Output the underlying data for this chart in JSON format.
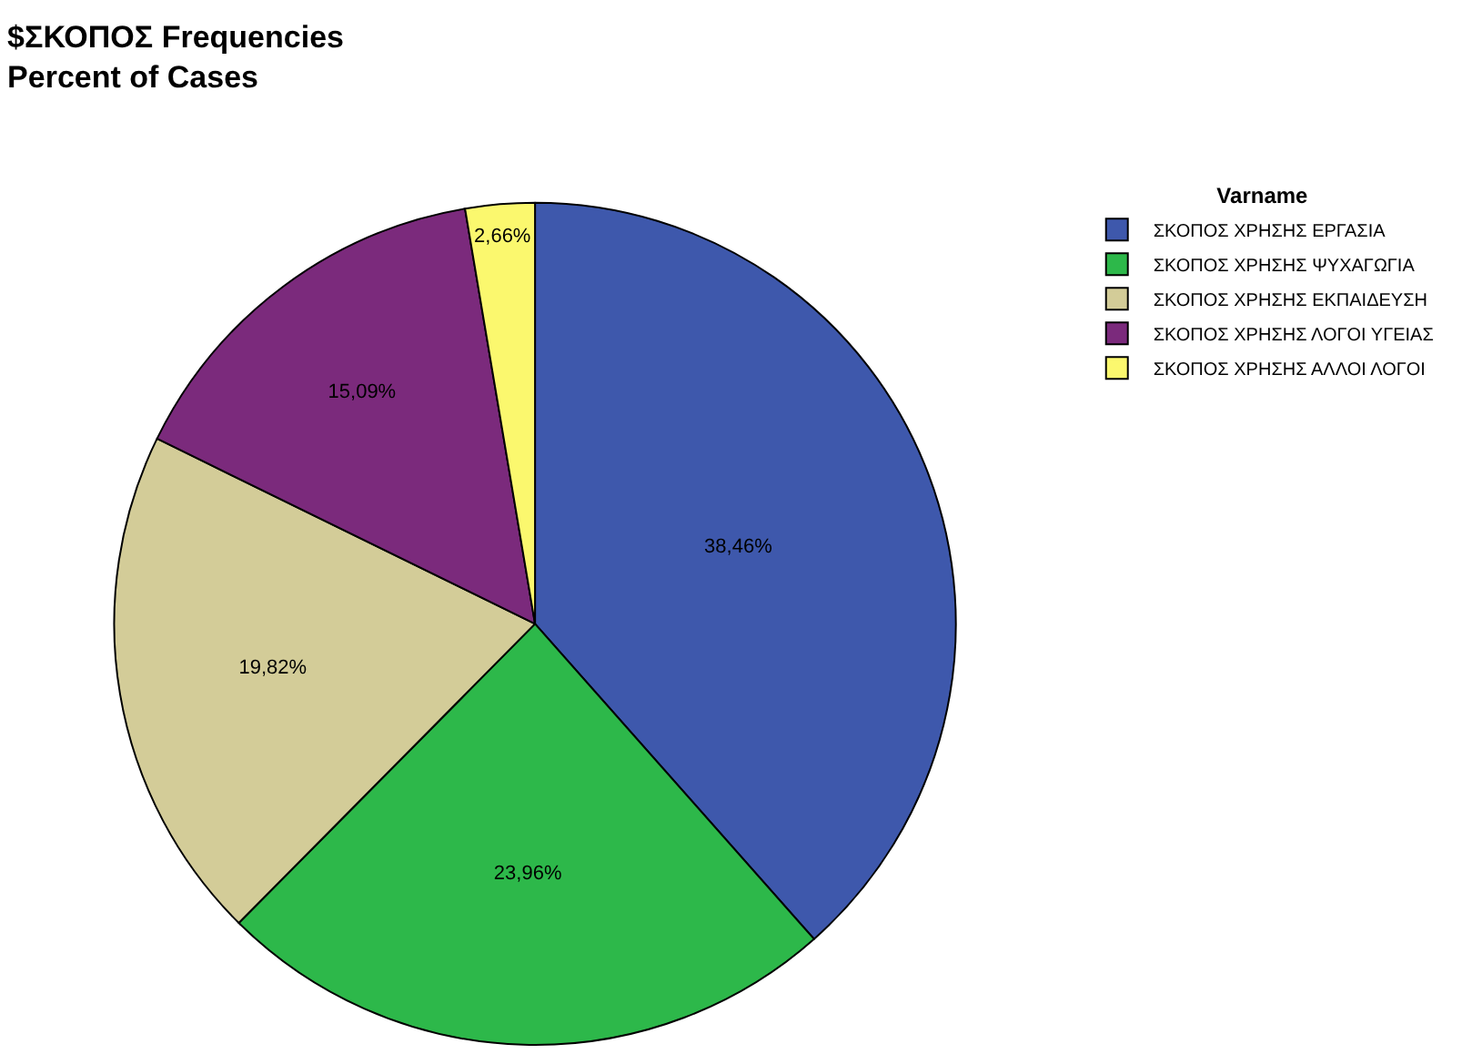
{
  "chart_data": {
    "type": "pie",
    "title": "$ΣΚΟΠΟΣ Frequencies\nPercent of Cases",
    "legend_title": "Varname",
    "legend": "top right",
    "categories": [
      "ΣΚΟΠΟΣ ΧΡΗΣΗΣ ΕΡΓΑΣΙΑ",
      "ΣΚΟΠΟΣ ΧΡΗΣΗΣ ΨΥΧΑΓΩΓΙΑ",
      "ΣΚΟΠΟΣ ΧΡΗΣΗΣ ΕΚΠΑΙΔΕΥΣΗ",
      "ΣΚΟΠΟΣ ΧΡΗΣΗΣ ΛΟΓΟΙ ΥΓΕΙΑΣ",
      "ΣΚΟΠΟΣ ΧΡΗΣΗΣ ΑΛΛΟΙ ΛΟΓΟΙ"
    ],
    "values": [
      38.46,
      23.96,
      19.82,
      15.09,
      2.66
    ],
    "colors": [
      "#3e58ac",
      "#2db84a",
      "#d3cc98",
      "#7b2a7c",
      "#fbf86e"
    ],
    "value_labels": [
      "38,46%",
      "23,96%",
      "19,82%",
      "15,09%",
      "2,66%"
    ]
  }
}
